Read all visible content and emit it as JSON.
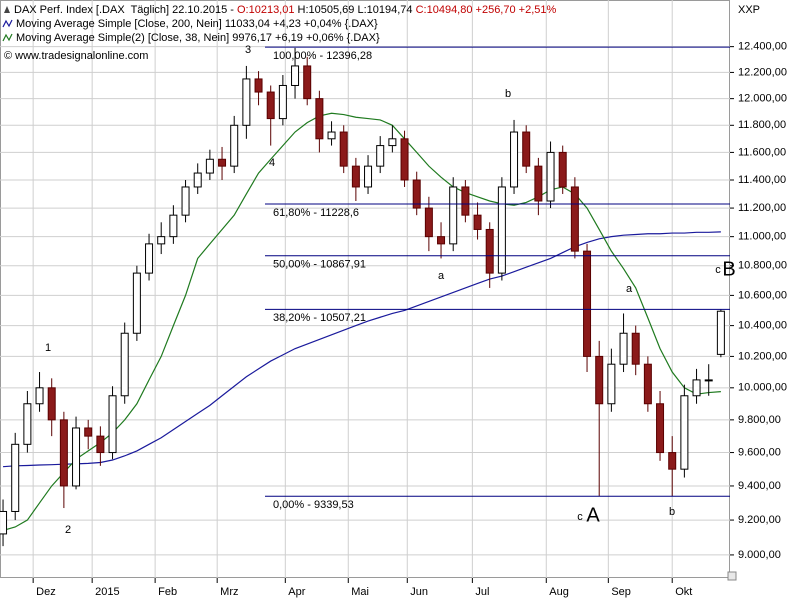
{
  "chart_data": {
    "type": "candlestick",
    "header": [
      {
        "text": "DAX Perf. Index [.DAX  Täglich] 22.10.2015 - ",
        "color": "#000000"
      },
      {
        "text": "O:10213,01",
        "color": "#c00000"
      },
      {
        "text": " H:10505,69 L:10194,74 ",
        "color": "#000000"
      },
      {
        "text": "C:10494,80 +256,70 +2,51%",
        "color": "#c00000"
      }
    ],
    "copyright": "© www.tradesignalonline.com",
    "corner_label": "XXP",
    "log": true,
    "grid": true,
    "up_color": "#ffffff",
    "down_color": "#8b1a1a",
    "xlim": [
      -1,
      239
    ],
    "ylim": [
      8870,
      12770
    ],
    "xticks": [
      {
        "value": 9.9,
        "label": "Dez"
      },
      {
        "value": 29.3,
        "label": "2015"
      },
      {
        "value": 50,
        "label": "Feb"
      },
      {
        "value": 70.4,
        "label": "Mrz"
      },
      {
        "value": 92.8,
        "label": "Apr"
      },
      {
        "value": 113.5,
        "label": "Mai"
      },
      {
        "value": 132.9,
        "label": "Jun"
      },
      {
        "value": 154.3,
        "label": "Jul"
      },
      {
        "value": 178.6,
        "label": "Aug"
      },
      {
        "value": 199,
        "label": "Sep"
      },
      {
        "value": 220,
        "label": "Okt"
      }
    ],
    "yticks": [
      {
        "value": 9000,
        "label": "9.000,00"
      },
      {
        "value": 9200,
        "label": "9.200,00"
      },
      {
        "value": 9400,
        "label": "9.400,00"
      },
      {
        "value": 9600,
        "label": "9.600,00"
      },
      {
        "value": 9800,
        "label": "9.800,00"
      },
      {
        "value": 10000,
        "label": "10.000,00"
      },
      {
        "value": 10200,
        "label": "10.200,00"
      },
      {
        "value": 10400,
        "label": "10.400,00"
      },
      {
        "value": 10600,
        "label": "10.600,00"
      },
      {
        "value": 10800,
        "label": "10.800,00"
      },
      {
        "value": 11000,
        "label": "11.000,00"
      },
      {
        "value": 11200,
        "label": "11.200,00"
      },
      {
        "value": 11400,
        "label": "11.400,00"
      },
      {
        "value": 11600,
        "label": "11.600,00"
      },
      {
        "value": 11800,
        "label": "11.800,00"
      },
      {
        "value": 12000,
        "label": "12.000,00"
      },
      {
        "value": 12200,
        "label": "12.200,00"
      },
      {
        "value": 12400,
        "label": "12.400,00"
      }
    ],
    "x": [
      0,
      4,
      8,
      12,
      16,
      20,
      24,
      28,
      32,
      36,
      40,
      44,
      48,
      52,
      56,
      60,
      64,
      68,
      72,
      76,
      80,
      84,
      88,
      92,
      96,
      100,
      104,
      108,
      112,
      116,
      120,
      124,
      128,
      132,
      136,
      140,
      144,
      148,
      152,
      156,
      160,
      164,
      168,
      172,
      176,
      180,
      184,
      188,
      192,
      196,
      200,
      204,
      208,
      212,
      216,
      220,
      224,
      228,
      232,
      236
    ],
    "open": [
      9120,
      9250,
      9650,
      9900,
      10000,
      9800,
      9400,
      9750,
      9700,
      9600,
      9950,
      10350,
      10750,
      10950,
      11000,
      11150,
      11350,
      11450,
      11550,
      11500,
      11800,
      12150,
      12050,
      11850,
      12100,
      12250,
      12000,
      11700,
      11750,
      11500,
      11350,
      11500,
      11650,
      11700,
      11400,
      11200,
      11000,
      10950,
      11350,
      11150,
      11050,
      10750,
      11350,
      11750,
      11500,
      11250,
      11600,
      11350,
      10900,
      10200,
      9900,
      10150,
      10350,
      10150,
      9900,
      9600,
      9500,
      9950,
      10050,
      10213.01
    ],
    "high": [
      9320,
      9720,
      9980,
      10100,
      10060,
      9850,
      9820,
      9800,
      9760,
      10010,
      10420,
      10800,
      11020,
      11100,
      11220,
      11400,
      11520,
      11620,
      11640,
      11870,
      12250,
      12210,
      12100,
      12180,
      12390,
      12320,
      12060,
      11830,
      11800,
      11560,
      11580,
      11720,
      11800,
      11760,
      11460,
      11280,
      11100,
      11420,
      11400,
      11240,
      11100,
      11420,
      11840,
      11800,
      11560,
      11680,
      11650,
      11420,
      10950,
      10300,
      10250,
      10480,
      10400,
      10200,
      9980,
      9700,
      10020,
      10120,
      10150,
      10505.69
    ],
    "low": [
      9050,
      9200,
      9600,
      9850,
      9700,
      9270,
      9380,
      9620,
      9520,
      9560,
      9900,
      10300,
      10700,
      10880,
      10950,
      11100,
      11300,
      11400,
      11400,
      11450,
      11700,
      11950,
      11650,
      11800,
      12000,
      11950,
      11600,
      11650,
      11450,
      11250,
      11300,
      11450,
      11600,
      11350,
      11150,
      10900,
      10850,
      10900,
      11100,
      10980,
      10650,
      10700,
      11300,
      11450,
      11150,
      11200,
      11300,
      10850,
      10100,
      9340,
      9850,
      10100,
      10080,
      9850,
      9550,
      9340,
      9450,
      9900,
      9950,
      10194.74
    ],
    "close": [
      9250,
      9650,
      9900,
      10000,
      9800,
      9400,
      9750,
      9700,
      9600,
      9950,
      10350,
      10750,
      10950,
      11000,
      11150,
      11350,
      11450,
      11550,
      11500,
      11800,
      12150,
      12050,
      11850,
      12100,
      12250,
      12000,
      11700,
      11750,
      11500,
      11350,
      11500,
      11650,
      11700,
      11400,
      11200,
      11000,
      10950,
      11350,
      11150,
      11050,
      10750,
      11350,
      11750,
      11500,
      11250,
      11600,
      11350,
      10900,
      10200,
      9900,
      10150,
      10350,
      10150,
      9900,
      9600,
      9500,
      9950,
      10050,
      10050,
      10494.8
    ],
    "series": [
      {
        "name": "Moving Average Simple [Close, 200, Nein]",
        "info": " 11033,04 +4,23 +0,04% {.DAX}",
        "color": "#1a1a9c",
        "values": [
          9515,
          9520,
          9522,
          9525,
          9527,
          9530,
          9532,
          9535,
          9540,
          9555,
          9580,
          9610,
          9650,
          9690,
          9740,
          9790,
          9840,
          9890,
          9950,
          10010,
          10070,
          10120,
          10170,
          10210,
          10250,
          10280,
          10310,
          10340,
          10370,
          10400,
          10430,
          10455,
          10480,
          10500,
          10530,
          10560,
          10590,
          10620,
          10650,
          10680,
          10710,
          10730,
          10760,
          10790,
          10820,
          10850,
          10890,
          10930,
          10960,
          10985,
          11000,
          11010,
          11015,
          11020,
          11020,
          11025,
          11025,
          11030,
          11030,
          11033.04
        ]
      },
      {
        "name": "Moving Average Simple(2) [Close, 38, Nein]",
        "info": " 9976,17 +6,19 +0,06% {.DAX}",
        "color": "#1f7a1f",
        "values": [
          9140,
          9160,
          9200,
          9300,
          9400,
          9480,
          9560,
          9610,
          9660,
          9720,
          9800,
          9900,
          10050,
          10200,
          10400,
          10600,
          10850,
          10950,
          11050,
          11150,
          11300,
          11450,
          11550,
          11650,
          11750,
          11820,
          11870,
          11890,
          11880,
          11860,
          11850,
          11840,
          11800,
          11700,
          11600,
          11500,
          11420,
          11350,
          11310,
          11280,
          11250,
          11230,
          11220,
          11240,
          11280,
          11330,
          11350,
          11300,
          11200,
          11050,
          10900,
          10780,
          10650,
          10450,
          10250,
          10100,
          10000,
          9960,
          9970,
          9976.17
        ]
      }
    ],
    "fib_levels": [
      {
        "label": "100,00% - 12396,28",
        "value": 12396.28
      },
      {
        "label": "61,80% - 11228,6",
        "value": 11228.6
      },
      {
        "label": "50,00% - 10867,91",
        "value": 10867.91
      },
      {
        "label": "38,20% - 10507,21",
        "value": 10507.21
      },
      {
        "label": "0,00% - 9339,53",
        "value": 9339.53
      }
    ],
    "fib_color": "#000080",
    "wave_color": "#1a1a8c",
    "wave_labels": [
      "1",
      "2",
      "3",
      "4",
      "a",
      "b",
      "c",
      "B",
      "a",
      "c",
      "A",
      "b"
    ]
  }
}
